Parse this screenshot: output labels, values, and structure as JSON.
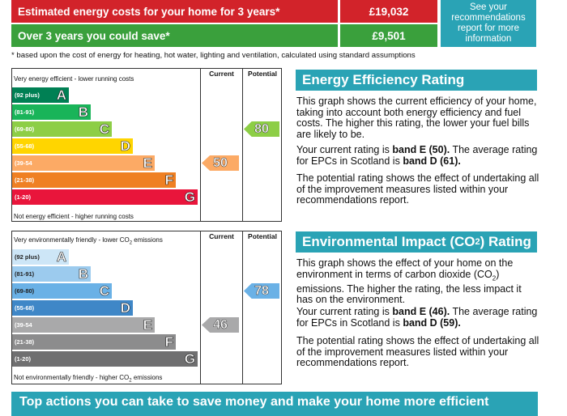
{
  "summary": {
    "cost_label": "Estimated energy costs for your home for 3 years*",
    "cost_value": "£19,032",
    "save_label": "Over 3 years you could save*",
    "save_value": "£9,501",
    "see_text": "See your recommendations report for more information",
    "footnote": "* based upon the cost of energy for heating, hot water, lighting and ventilation, calculated using standard assumptions"
  },
  "energy_chart": {
    "col_current": "Current",
    "col_potential": "Potential",
    "top_text": "Very energy efficient - lower running costs",
    "bottom_text": "Not energy efficient - higher running costs",
    "bands": [
      {
        "range": "(92 plus)",
        "letter": "A",
        "color": "#008054"
      },
      {
        "range": "(81-91)",
        "letter": "B",
        "color": "#19b459"
      },
      {
        "range": "(69-80)",
        "letter": "C",
        "color": "#8dce46"
      },
      {
        "range": "(55-68)",
        "letter": "D",
        "color": "#ffd500"
      },
      {
        "range": "(39-54",
        "letter": "E",
        "color": "#fcaa65"
      },
      {
        "range": "(21-38)",
        "letter": "F",
        "color": "#ef8023"
      },
      {
        "range": "(1-20)",
        "letter": "G",
        "color": "#e9153b"
      }
    ],
    "current_value": "50",
    "potential_value": "80",
    "current_color": "#fcaa65",
    "potential_color": "#8dce46"
  },
  "env_chart": {
    "col_current": "Current",
    "col_potential": "Potential",
    "top_text_pre": "Very environmentally friendly - lower CO",
    "top_text_sub": "2",
    "top_text_post": " emissions",
    "bottom_text_pre": "Not environmentally friendly - higher CO",
    "bottom_text_sub": "2",
    "bottom_text_post": " emissions",
    "bands": [
      {
        "range": "(92 plus)",
        "letter": "A",
        "color": "#cde6f7"
      },
      {
        "range": "(81-91)",
        "letter": "B",
        "color": "#9ccbee"
      },
      {
        "range": "(69-80)",
        "letter": "C",
        "color": "#6ab1e6"
      },
      {
        "range": "(55-68)",
        "letter": "D",
        "color": "#3f87c7"
      },
      {
        "range": "(39-54",
        "letter": "E",
        "color": "#a9a9aa"
      },
      {
        "range": "(21-38)",
        "letter": "F",
        "color": "#8c8c8d"
      },
      {
        "range": "(1-20)",
        "letter": "G",
        "color": "#6f6f70"
      }
    ],
    "current_value": "46",
    "potential_value": "78",
    "current_color": "#a9a9aa",
    "potential_color": "#6ab1e6"
  },
  "eer_panel": {
    "title": "Energy Efficiency Rating",
    "p1": "This graph shows the current efficiency of your home, taking into account both energy efficiency and fuel costs. The higher this rating, the lower your fuel bills are likely to be.",
    "p2_pre": "Your current rating is ",
    "p2_b1": "band E (50).",
    "p2_mid": " The average rating for EPCs in Scotland is ",
    "p2_b2": "band D (61).",
    "p3": "The potential rating shows the effect of undertaking all of the improvement measures listed within your recommendations report."
  },
  "eir_panel": {
    "title_pre": "Environmental Impact (CO",
    "title_sub": "2",
    "title_post": ") Rating",
    "p1_pre": "This graph shows the effect of your home on the environment in terms of carbon dioxide (CO",
    "p1_sub": "2",
    "p1_post": ") emissions. The higher the rating, the less impact it has on the environment.",
    "p2_pre": "Your current rating is ",
    "p2_b1": "band E (46).",
    "p2_mid": " The average rating for EPCs in Scotland is ",
    "p2_b2": "band D (59).",
    "p3": "The potential rating shows the effect of undertaking all of the improvement measures listed within your recommendations report."
  },
  "bottom": {
    "banner": "Top actions you can take to save money and make your home more efficient"
  }
}
